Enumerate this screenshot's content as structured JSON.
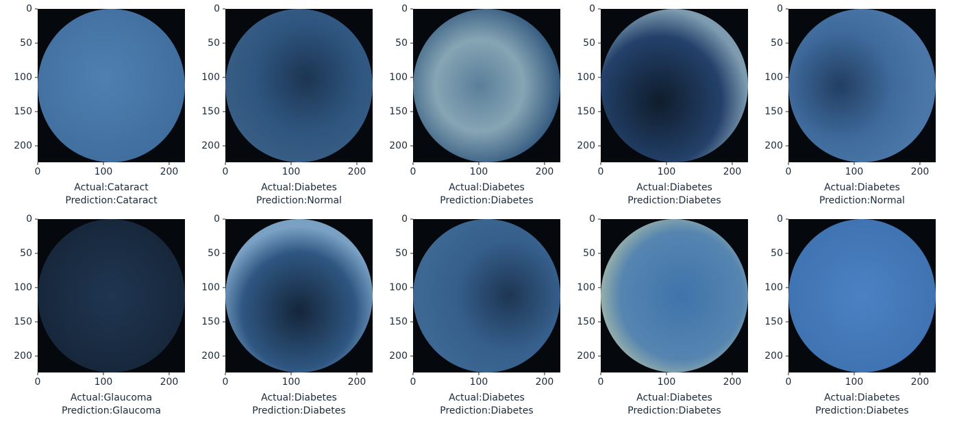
{
  "chart_data": [
    {
      "type": "image",
      "xlabel": [
        "Actual:Cataract",
        "Prediction:Cataract"
      ],
      "xlim": [
        0,
        224
      ],
      "ylim": [
        224,
        0
      ],
      "xticks": [
        0,
        100,
        200
      ],
      "yticks": [
        0,
        50,
        100,
        150,
        200
      ]
    },
    {
      "type": "image",
      "xlabel": [
        "Actual:Diabetes",
        "Prediction:Normal"
      ],
      "xlim": [
        0,
        224
      ],
      "ylim": [
        224,
        0
      ],
      "xticks": [
        0,
        100,
        200
      ],
      "yticks": [
        0,
        50,
        100,
        150,
        200
      ]
    },
    {
      "type": "image",
      "xlabel": [
        "Actual:Diabetes",
        "Prediction:Diabetes"
      ],
      "xlim": [
        0,
        224
      ],
      "ylim": [
        224,
        0
      ],
      "xticks": [
        0,
        100,
        200
      ],
      "yticks": [
        0,
        50,
        100,
        150,
        200
      ]
    },
    {
      "type": "image",
      "xlabel": [
        "Actual:Diabetes",
        "Prediction:Diabetes"
      ],
      "xlim": [
        0,
        224
      ],
      "ylim": [
        224,
        0
      ],
      "xticks": [
        0,
        100,
        200
      ],
      "yticks": [
        0,
        50,
        100,
        150,
        200
      ]
    },
    {
      "type": "image",
      "xlabel": [
        "Actual:Diabetes",
        "Prediction:Normal"
      ],
      "xlim": [
        0,
        224
      ],
      "ylim": [
        224,
        0
      ],
      "xticks": [
        0,
        100,
        200
      ],
      "yticks": [
        0,
        50,
        100,
        150,
        200
      ]
    },
    {
      "type": "image",
      "xlabel": [
        "Actual:Glaucoma",
        "Prediction:Glaucoma"
      ],
      "xlim": [
        0,
        224
      ],
      "ylim": [
        224,
        0
      ],
      "xticks": [
        0,
        100,
        200
      ],
      "yticks": [
        0,
        50,
        100,
        150,
        200
      ]
    },
    {
      "type": "image",
      "xlabel": [
        "Actual:Diabetes",
        "Prediction:Diabetes"
      ],
      "xlim": [
        0,
        224
      ],
      "ylim": [
        224,
        0
      ],
      "xticks": [
        0,
        100,
        200
      ],
      "yticks": [
        0,
        50,
        100,
        150,
        200
      ]
    },
    {
      "type": "image",
      "xlabel": [
        "Actual:Diabetes",
        "Prediction:Diabetes"
      ],
      "xlim": [
        0,
        224
      ],
      "ylim": [
        224,
        0
      ],
      "xticks": [
        0,
        100,
        200
      ],
      "yticks": [
        0,
        50,
        100,
        150,
        200
      ]
    },
    {
      "type": "image",
      "xlabel": [
        "Actual:Diabetes",
        "Prediction:Diabetes"
      ],
      "xlim": [
        0,
        224
      ],
      "ylim": [
        224,
        0
      ],
      "xticks": [
        0,
        100,
        200
      ],
      "yticks": [
        0,
        50,
        100,
        150,
        200
      ]
    },
    {
      "type": "image",
      "xlabel": [
        "Actual:Diabetes",
        "Prediction:Diabetes"
      ],
      "xlim": [
        0,
        224
      ],
      "ylim": [
        224,
        0
      ],
      "xticks": [
        0,
        100,
        200
      ],
      "yticks": [
        0,
        50,
        100,
        150,
        200
      ]
    }
  ]
}
